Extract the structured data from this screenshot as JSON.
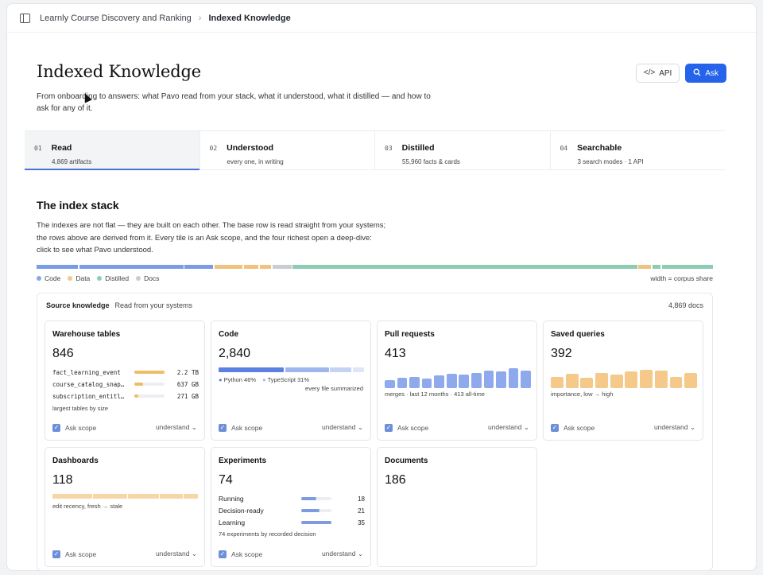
{
  "breadcrumb": {
    "parent": "Learnly Course Discovery and Ranking",
    "separator": "›",
    "current": "Indexed Knowledge"
  },
  "header": {
    "title": "Indexed Knowledge",
    "subtitle": "From onboarding to answers: what Pavo read from your stack, what it understood, what it distilled — and how to ask for any of it.",
    "api_label": "API",
    "ask_label": "Ask"
  },
  "steps": [
    {
      "num": "01",
      "label": "Read",
      "sub": "4,869 artifacts"
    },
    {
      "num": "02",
      "label": "Understood",
      "sub": "every one, in writing"
    },
    {
      "num": "03",
      "label": "Distilled",
      "sub": "55,960 facts & cards"
    },
    {
      "num": "04",
      "label": "Searchable",
      "sub": "3 search modes · 1 API"
    }
  ],
  "stack": {
    "title": "The index stack",
    "description": "The indexes are not flat — they are built on each other. The base row is read straight from your systems; the rows above are derived from it. Every tile is an Ask scope, and the four richest open a deep-dive: click to see what Pavo understood.",
    "legend": [
      {
        "label": "Code",
        "color": "#8aa8e8"
      },
      {
        "label": "Data",
        "color": "#f3c98a"
      },
      {
        "label": "Distilled",
        "color": "#8fcbb5"
      },
      {
        "label": "Docs",
        "color": "#c9ccd1"
      }
    ],
    "legend_note": "width = corpus share",
    "bar_segments": [
      {
        "kind": "code",
        "share": 6.5
      },
      {
        "kind": "code",
        "share": 16.3
      },
      {
        "kind": "code",
        "share": 4.5
      },
      {
        "kind": "data",
        "share": 4.4
      },
      {
        "kind": "data",
        "share": 2.3
      },
      {
        "kind": "data",
        "share": 1.8
      },
      {
        "kind": "docs",
        "share": 3.0
      },
      {
        "kind": "distilled",
        "share": 54.0
      },
      {
        "kind": "data",
        "share": 2.0
      },
      {
        "kind": "distilled",
        "share": 1.3
      },
      {
        "kind": "distilled",
        "share": 8.0
      }
    ]
  },
  "source_panel": {
    "title": "Source knowledge",
    "subtitle": "Read from your systems",
    "count": "4,869 docs"
  },
  "cards": {
    "ask_scope": "Ask scope",
    "understand": "understand",
    "warehouse": {
      "title": "Warehouse tables",
      "value": "846",
      "rows": [
        {
          "name": "fact_learning_event",
          "size": "2.2 TB",
          "fraction": 1.0
        },
        {
          "name": "course_catalog_snap…",
          "size": "637 GB",
          "fraction": 0.29
        },
        {
          "name": "subscription_entitl…",
          "size": "271 GB",
          "fraction": 0.12
        }
      ],
      "note": "largest tables by size"
    },
    "code": {
      "title": "Code",
      "value": "2,840",
      "python": "Python 46%",
      "typescript": "TypeScript 31%",
      "shares": [
        46,
        31,
        15,
        8
      ],
      "note": "every file summarized"
    },
    "pulls": {
      "title": "Pull requests",
      "value": "413",
      "bars": [
        0.4,
        0.5,
        0.55,
        0.45,
        0.6,
        0.7,
        0.65,
        0.75,
        0.85,
        0.8,
        0.95,
        0.85
      ],
      "note": "merges · last 12 months · 413 all-time"
    },
    "queries": {
      "title": "Saved queries",
      "value": "392",
      "bars": [
        0.55,
        0.7,
        0.5,
        0.75,
        0.65,
        0.8,
        0.9,
        0.85,
        0.55,
        0.75
      ],
      "note": "importance, low → high"
    },
    "dashboards": {
      "title": "Dashboards",
      "value": "118",
      "shares": [
        28,
        24,
        22,
        16,
        10
      ],
      "note": "edit recency, fresh → stale"
    },
    "experiments": {
      "title": "Experiments",
      "value": "74",
      "rows": [
        {
          "label": "Running",
          "n": "18",
          "fraction": 0.5
        },
        {
          "label": "Decision-ready",
          "n": "21",
          "fraction": 0.6
        },
        {
          "label": "Learning",
          "n": "35",
          "fraction": 1.0
        }
      ],
      "note": "74 experiments by recorded decision"
    },
    "documents": {
      "title": "Documents",
      "value": "186"
    }
  }
}
